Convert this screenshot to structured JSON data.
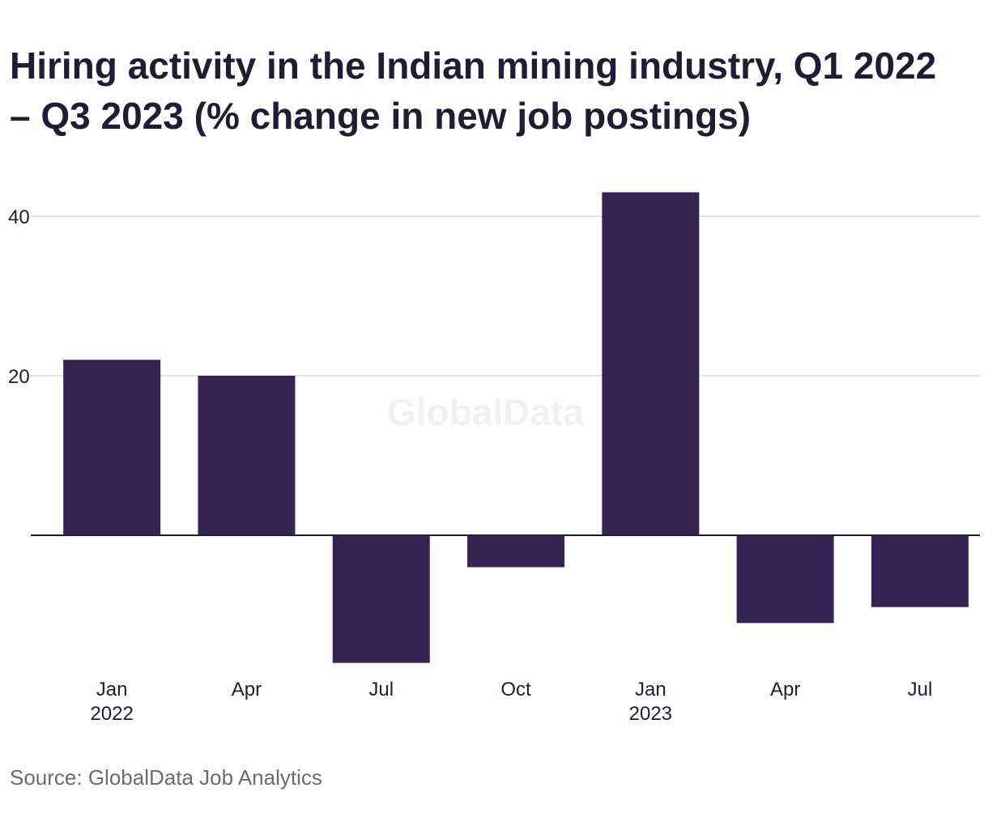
{
  "title": "Hiring activity in the Indian mining industry, Q1 2022 – Q3 2023 (% change in new job postings)",
  "source": "Source: GlobalData Job Analytics",
  "watermark": "GlobalData",
  "colors": {
    "bar": "#352452",
    "grid": "#d9d9d9",
    "axis": "#1f1d33",
    "text": "#1f1d33",
    "muted": "#6b6b75"
  },
  "chart_data": {
    "type": "bar",
    "title": "Hiring activity in the Indian mining industry, Q1 2022 – Q3 2023 (% change in new job postings)",
    "xlabel": "",
    "ylabel": "",
    "categories": [
      [
        "Jan",
        "2022"
      ],
      [
        "Apr",
        ""
      ],
      [
        "Jul",
        ""
      ],
      [
        "Oct",
        ""
      ],
      [
        "Jan",
        "2023"
      ],
      [
        "Apr",
        ""
      ],
      [
        "Jul",
        ""
      ]
    ],
    "values": [
      22,
      20,
      -16,
      -4,
      43,
      -11,
      -9
    ],
    "yticks": [
      20,
      40
    ],
    "ylim": [
      -16,
      43
    ],
    "grid": true,
    "legend": "none"
  }
}
